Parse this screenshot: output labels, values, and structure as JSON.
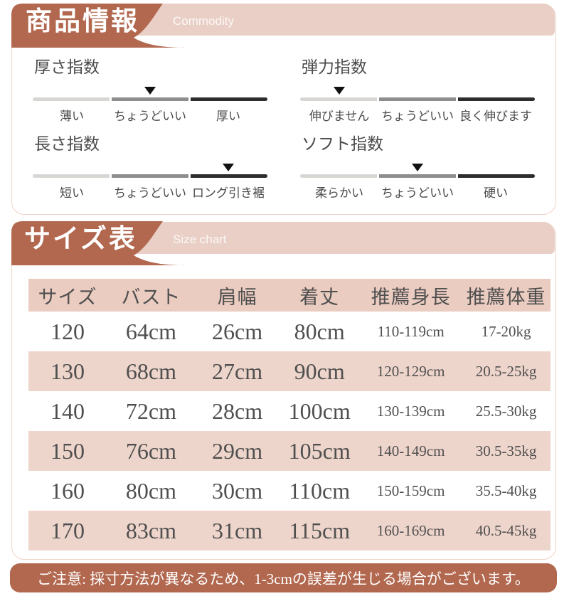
{
  "colors": {
    "accent_brown": "#b2684f",
    "band_pink": "#e9cfc5",
    "table_header_pink": "#ebccc1",
    "table_row_pink": "#eed5cb",
    "outline_pink": "#f0d3c6",
    "bar_light": "#d8d6d3",
    "bar_mid": "#8e8e8e",
    "bar_dark": "#2d2d2d",
    "text_dark": "#4a4a4a"
  },
  "product_info": {
    "title": "商品情報",
    "subtitle": "Commodity",
    "indices": [
      {
        "name": "厚さ指数",
        "labels": [
          "薄い",
          "ちょうどいい",
          "厚い"
        ],
        "arrow_segment": 1
      },
      {
        "name": "弾力指数",
        "labels": [
          "伸びません",
          "ちょうどいい",
          "良く伸びます"
        ],
        "arrow_segment": 0
      },
      {
        "name": "長さ指数",
        "labels": [
          "短い",
          "ちょうどいい",
          "ロング引き裾"
        ],
        "arrow_segment": 2
      },
      {
        "name": "ソフト指数",
        "labels": [
          "柔らかい",
          "ちょうどいい",
          "硬い"
        ],
        "arrow_segment": 1
      }
    ]
  },
  "size_chart": {
    "title": "サイズ表",
    "subtitle": "Size chart",
    "columns": [
      "サイズ",
      "バスト",
      "肩幅",
      "着丈",
      "推薦身長",
      "推薦体重"
    ],
    "rows": [
      [
        "120",
        "64cm",
        "26cm",
        "80cm",
        "110-119cm",
        "17-20kg"
      ],
      [
        "130",
        "68cm",
        "27cm",
        "90cm",
        "120-129cm",
        "20.5-25kg"
      ],
      [
        "140",
        "72cm",
        "28cm",
        "100cm",
        "130-139cm",
        "25.5-30kg"
      ],
      [
        "150",
        "76cm",
        "29cm",
        "105cm",
        "140-149cm",
        "30.5-35kg"
      ],
      [
        "160",
        "80cm",
        "30cm",
        "110cm",
        "150-159cm",
        "35.5-40kg"
      ],
      [
        "170",
        "83cm",
        "31cm",
        "115cm",
        "160-169cm",
        "40.5-45kg"
      ]
    ]
  },
  "notice": "ご注意: 採寸方法が異なるため、1-3cmの誤差が生じる場合がございます。"
}
